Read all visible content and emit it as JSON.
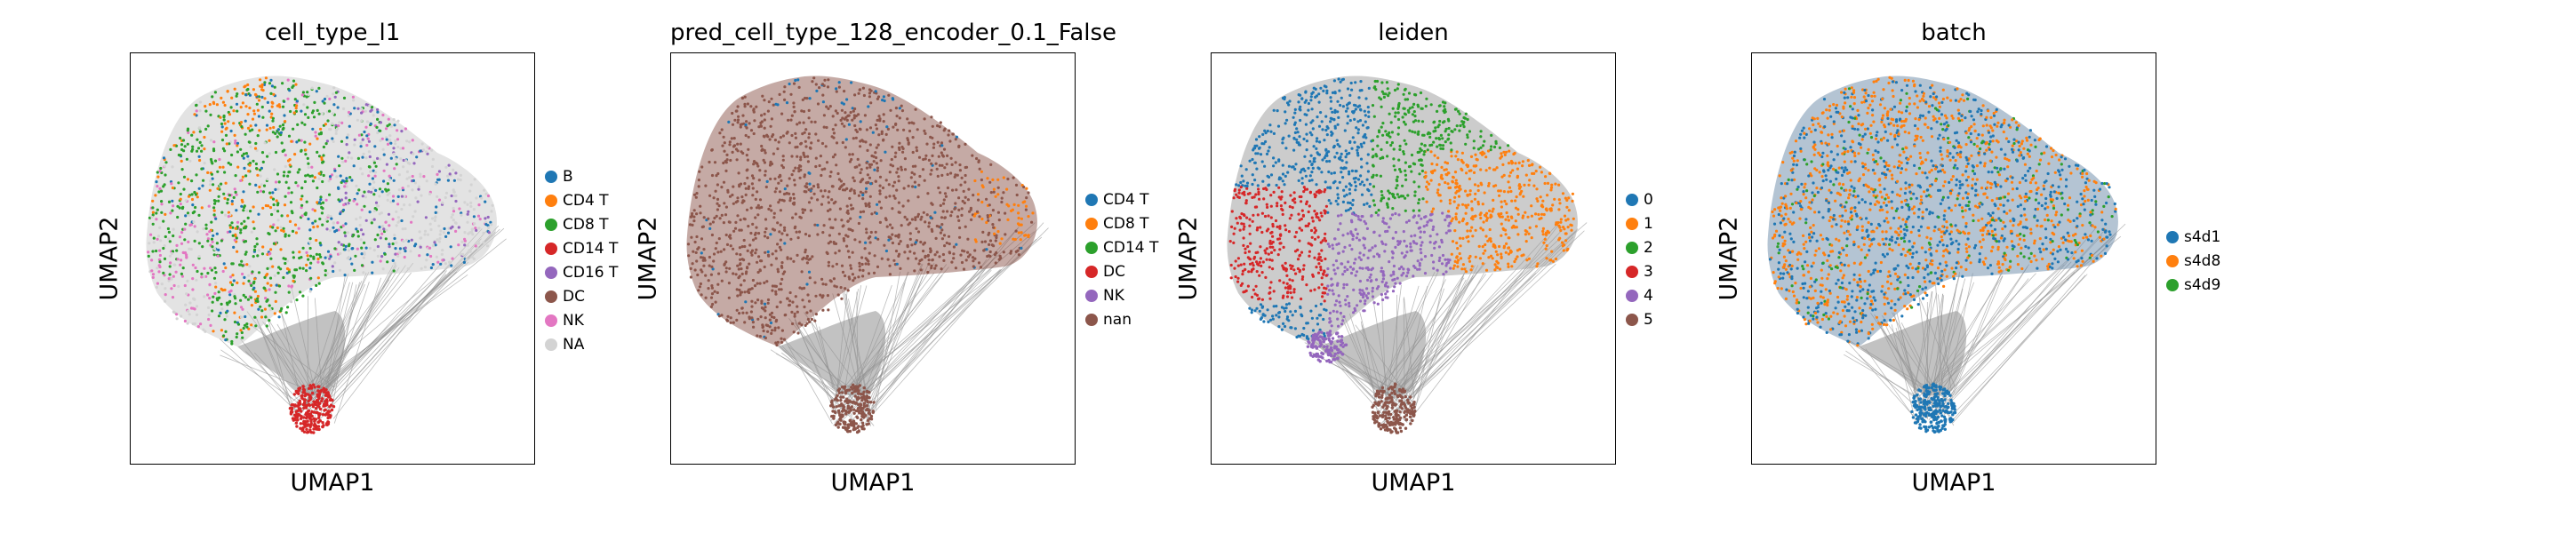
{
  "chart_data": [
    {
      "type": "scatter",
      "title": "cell_type_l1",
      "xlabel": "UMAP1",
      "ylabel": "UMAP2",
      "grid": false,
      "legend_position": "right",
      "legend": [
        {
          "label": "B",
          "color": "#1f77b4"
        },
        {
          "label": "CD4 T",
          "color": "#ff7f0e"
        },
        {
          "label": "CD8 T",
          "color": "#2ca02c"
        },
        {
          "label": "CD14 T",
          "color": "#d62728"
        },
        {
          "label": "CD16 T",
          "color": "#9467bd"
        },
        {
          "label": "DC",
          "color": "#8c564b"
        },
        {
          "label": "NK",
          "color": "#e377c2"
        },
        {
          "label": "NA",
          "color": "#d3d3d3"
        }
      ]
    },
    {
      "type": "scatter",
      "title": "pred_cell_type_128_encoder_0.1_False",
      "xlabel": "UMAP1",
      "ylabel": "UMAP2",
      "grid": false,
      "legend_position": "right",
      "legend": [
        {
          "label": "CD4 T",
          "color": "#1f77b4"
        },
        {
          "label": "CD8 T",
          "color": "#ff7f0e"
        },
        {
          "label": "CD14 T",
          "color": "#2ca02c"
        },
        {
          "label": "DC",
          "color": "#d62728"
        },
        {
          "label": "NK",
          "color": "#9467bd"
        },
        {
          "label": "nan",
          "color": "#8c564b"
        }
      ]
    },
    {
      "type": "scatter",
      "title": "leiden",
      "xlabel": "UMAP1",
      "ylabel": "UMAP2",
      "grid": false,
      "legend_position": "right",
      "legend": [
        {
          "label": "0",
          "color": "#1f77b4"
        },
        {
          "label": "1",
          "color": "#ff7f0e"
        },
        {
          "label": "2",
          "color": "#2ca02c"
        },
        {
          "label": "3",
          "color": "#d62728"
        },
        {
          "label": "4",
          "color": "#9467bd"
        },
        {
          "label": "5",
          "color": "#8c564b"
        }
      ]
    },
    {
      "type": "scatter",
      "title": "batch",
      "xlabel": "UMAP1",
      "ylabel": "UMAP2",
      "grid": false,
      "legend_position": "right",
      "legend": [
        {
          "label": "s4d1",
          "color": "#1f77b4"
        },
        {
          "label": "s4d8",
          "color": "#ff7f0e"
        },
        {
          "label": "s4d9",
          "color": "#2ca02c"
        }
      ]
    }
  ]
}
